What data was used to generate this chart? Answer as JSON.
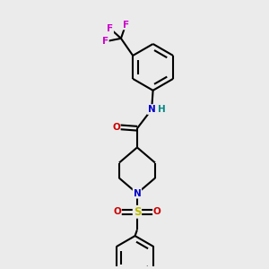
{
  "background_color": "#ebebeb",
  "atom_colors": {
    "C": "#000000",
    "N": "#0000cc",
    "O": "#cc0000",
    "S": "#bbbb00",
    "F": "#cc00cc",
    "H": "#008888"
  },
  "bond_color": "#000000",
  "bond_lw": 1.5,
  "figsize": [
    3.0,
    3.0
  ],
  "dpi": 100
}
